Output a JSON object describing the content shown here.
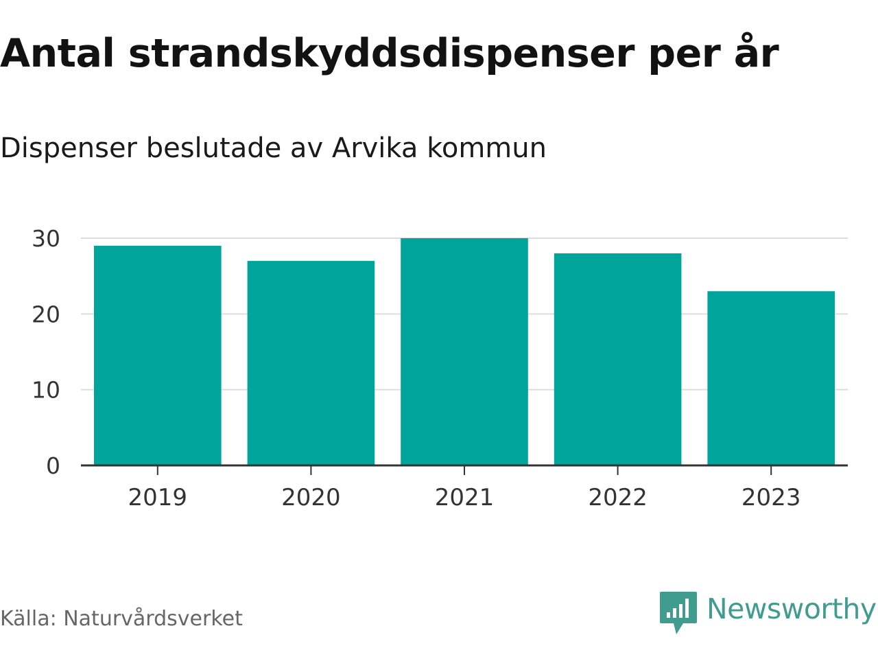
{
  "title": "Antal strandskyddsdispenser per år",
  "subtitle": "Dispenser beslutade av Arvika kommun",
  "source": "Källa: Naturvårdsverket",
  "brand": {
    "name": "Newsworthy",
    "icon": "newsworthy-logo-icon",
    "color": "#3f9c8e"
  },
  "colors": {
    "bar": "#00a49a",
    "grid": "#dddddd",
    "axis": "#333333",
    "tick_text": "#333333"
  },
  "chart_data": {
    "type": "bar",
    "categories": [
      "2019",
      "2020",
      "2021",
      "2022",
      "2023"
    ],
    "values": [
      29,
      27,
      30,
      28,
      23
    ],
    "title": "Antal strandskyddsdispenser per år",
    "subtitle": "Dispenser beslutade av Arvika kommun",
    "xlabel": "",
    "ylabel": "",
    "ylim": [
      0,
      30
    ],
    "yticks": [
      "0",
      "10",
      "20",
      "30"
    ],
    "grid": true,
    "legend": "none"
  }
}
